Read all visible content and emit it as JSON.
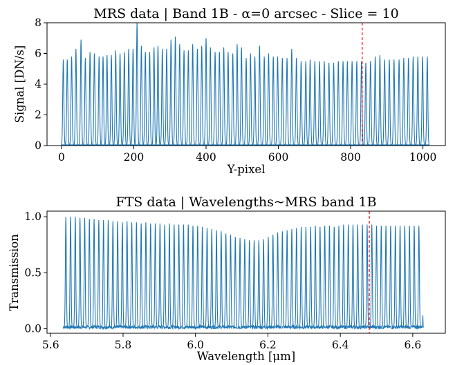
{
  "chart_data": [
    {
      "type": "line",
      "title": "MRS data | Band 1B - α=0 arcsec - Slice = 10",
      "xlabel": "Y-pixel",
      "ylabel": "Signal [DN/s]",
      "xlim": [
        -40,
        1062
      ],
      "ylim": [
        0,
        8
      ],
      "xticks": [
        0,
        200,
        400,
        600,
        800,
        1000
      ],
      "yticks": [
        0,
        2,
        4,
        6,
        8
      ],
      "grid": false,
      "series_color": "#1f77b4",
      "marker_color": "#ff0000",
      "reference_line_x": 832,
      "peaks": {
        "x": [
          5,
          16,
          28,
          40,
          54,
          66,
          79,
          91,
          104,
          115,
          126,
          138,
          150,
          162,
          174,
          186,
          198,
          209,
          221,
          232,
          244,
          256,
          267,
          279,
          291,
          303,
          315,
          327,
          339,
          351,
          363,
          376,
          388,
          400,
          412,
          425,
          437,
          449,
          461,
          474,
          486,
          498,
          511,
          523,
          535,
          548,
          561,
          573,
          586,
          598,
          611,
          624,
          637,
          650,
          663,
          676,
          688,
          701,
          714,
          727,
          740,
          753,
          766,
          779,
          791,
          804,
          817,
          830,
          842,
          855,
          868,
          881,
          894,
          907,
          920,
          934,
          947,
          960,
          973,
          986,
          999,
          1012
        ],
        "signal": [
          5.6,
          5.6,
          5.8,
          6.3,
          6.9,
          5.7,
          6.1,
          6.0,
          5.8,
          5.8,
          5.9,
          5.9,
          6.2,
          6.0,
          6.1,
          6.3,
          6.3,
          8.0,
          6.5,
          6.1,
          6.1,
          6.4,
          6.5,
          6.3,
          6.3,
          6.9,
          7.1,
          6.6,
          6.2,
          6.2,
          6.6,
          6.3,
          6.5,
          7.0,
          6.4,
          6.1,
          6.1,
          6.4,
          6.1,
          6.0,
          6.6,
          6.4,
          5.7,
          6.0,
          5.8,
          6.5,
          5.8,
          6.0,
          5.8,
          5.8,
          5.7,
          5.7,
          6.3,
          5.7,
          5.5,
          5.5,
          5.6,
          5.5,
          5.5,
          5.5,
          5.4,
          5.4,
          5.5,
          5.5,
          5.5,
          5.5,
          5.5,
          5.5,
          5.4,
          5.5,
          5.8,
          5.9,
          5.6,
          5.6,
          5.6,
          5.6,
          5.7,
          5.7,
          5.8,
          5.8,
          5.8,
          5.8
        ],
        "peak_halfwidth": 2.5,
        "baseline": 0.05
      }
    },
    {
      "type": "line",
      "title": "FTS data | Wavelengths~MRS band 1B",
      "xlabel": "Wavelength [μm]",
      "ylabel": "Transmission",
      "xlim": [
        5.59,
        6.69
      ],
      "ylim": [
        -0.04,
        1.05
      ],
      "xticks": [
        5.6,
        5.8,
        6.0,
        6.2,
        6.4,
        6.6
      ],
      "yticks": [
        0.0,
        0.5,
        1.0
      ],
      "ytick_labels": [
        "0.0",
        "0.5",
        "1.0"
      ],
      "grid": false,
      "series_color": "#1f77b4",
      "marker_color": "#ff0000",
      "reference_line_x": 6.48,
      "peaks": {
        "x": [
          5.642,
          5.655,
          5.668,
          5.681,
          5.694,
          5.707,
          5.72,
          5.733,
          5.746,
          5.759,
          5.772,
          5.785,
          5.798,
          5.811,
          5.824,
          5.837,
          5.85,
          5.863,
          5.876,
          5.889,
          5.902,
          5.915,
          5.928,
          5.941,
          5.954,
          5.967,
          5.98,
          5.993,
          6.006,
          6.019,
          6.032,
          6.045,
          6.058,
          6.071,
          6.084,
          6.097,
          6.11,
          6.123,
          6.136,
          6.149,
          6.162,
          6.175,
          6.188,
          6.201,
          6.214,
          6.227,
          6.24,
          6.253,
          6.266,
          6.279,
          6.292,
          6.305,
          6.318,
          6.331,
          6.344,
          6.357,
          6.37,
          6.383,
          6.396,
          6.409,
          6.422,
          6.435,
          6.448,
          6.461,
          6.474,
          6.487,
          6.5,
          6.513,
          6.526,
          6.539,
          6.552,
          6.565,
          6.578,
          6.591,
          6.604,
          6.617
        ],
        "transmission": [
          1.0,
          1.0,
          1.0,
          0.99,
          0.99,
          0.98,
          0.98,
          0.97,
          0.97,
          0.97,
          0.96,
          0.96,
          0.95,
          0.96,
          0.95,
          0.95,
          0.94,
          0.95,
          0.94,
          0.94,
          0.94,
          0.93,
          0.94,
          0.93,
          0.93,
          0.93,
          0.93,
          0.92,
          0.92,
          0.91,
          0.9,
          0.89,
          0.88,
          0.87,
          0.85,
          0.84,
          0.82,
          0.81,
          0.8,
          0.79,
          0.79,
          0.79,
          0.8,
          0.82,
          0.84,
          0.86,
          0.87,
          0.88,
          0.89,
          0.9,
          0.91,
          0.91,
          0.91,
          0.92,
          0.91,
          0.92,
          0.92,
          0.91,
          0.92,
          0.93,
          0.93,
          0.93,
          0.93,
          0.93,
          0.93,
          0.93,
          0.92,
          0.92,
          0.92,
          0.92,
          0.92,
          0.92,
          0.92,
          0.92,
          0.92,
          0.92
        ],
        "peak_halfwidth": 0.0022,
        "noise_floor": [
          0.0,
          0.03
        ],
        "tail_spike": {
          "x": 6.628,
          "transmission": 0.12
        }
      }
    }
  ]
}
